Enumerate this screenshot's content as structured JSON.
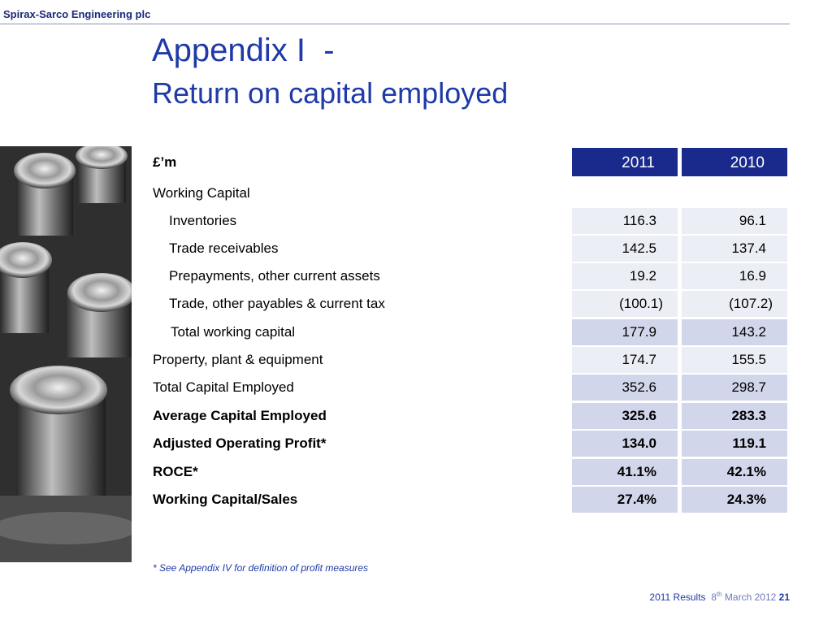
{
  "header": {
    "company": "Spirax-Sarco Engineering plc"
  },
  "title": {
    "line1": "Appendix I  -",
    "line2": "Return on capital employed"
  },
  "table": {
    "unit_label": "£’m",
    "col_headers": [
      "2011",
      "2010"
    ],
    "rows": [
      {
        "label": "Working Capital",
        "v2011": "",
        "v2010": ""
      },
      {
        "label": "Inventories",
        "v2011": "116.3",
        "v2010": "96.1"
      },
      {
        "label": "Trade receivables",
        "v2011": "142.5",
        "v2010": "137.4"
      },
      {
        "label": "Prepayments, other current assets",
        "v2011": "19.2",
        "v2010": "16.9"
      },
      {
        "label": "Trade, other payables & current tax",
        "v2011": "(100.1)",
        "v2010": "(107.2)"
      },
      {
        "label": "Total working capital",
        "v2011": "177.9",
        "v2010": "143.2"
      },
      {
        "label": "Property, plant & equipment",
        "v2011": "174.7",
        "v2010": "155.5"
      },
      {
        "label": "Total Capital Employed",
        "v2011": "352.6",
        "v2010": "298.7"
      },
      {
        "label": "Average Capital Employed",
        "v2011": "325.6",
        "v2010": "283.3"
      },
      {
        "label": "Adjusted Operating Profit*",
        "v2011": "134.0",
        "v2010": "119.1"
      },
      {
        "label": "ROCE*",
        "v2011": "41.1%",
        "v2010": "42.1%"
      },
      {
        "label": "Working Capital/Sales",
        "v2011": "27.4%",
        "v2010": "24.3%"
      }
    ]
  },
  "footnote": "* See Appendix IV for definition of profit measures",
  "footer": {
    "results": "2011 Results",
    "date_day": "8",
    "date_suffix": "th",
    "date_rest": " March 2012",
    "page": "21"
  },
  "colors": {
    "brand_blue": "#1a2a8c",
    "title_blue": "#1f3aa8",
    "shade_light": "#eceef6",
    "shade_dark": "#d2d6ea"
  }
}
